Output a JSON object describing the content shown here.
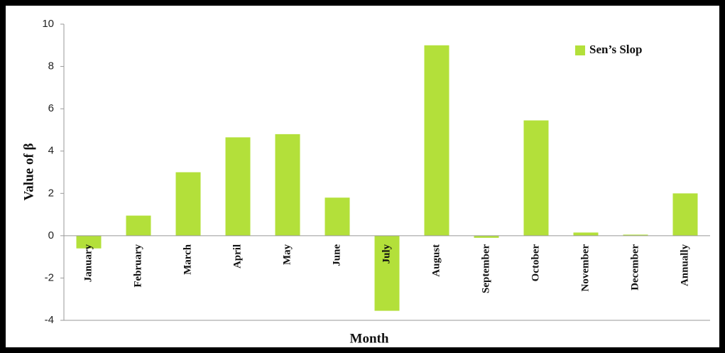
{
  "chart_data": {
    "type": "bar",
    "categories": [
      "January",
      "February",
      "March",
      "April",
      "May",
      "June",
      "July",
      "August",
      "September",
      "October",
      "November",
      "December",
      "Annually"
    ],
    "series": [
      {
        "name": "Sen’s Slop",
        "color": "#b3e03a",
        "values": [
          -0.6,
          0.95,
          3.0,
          4.65,
          4.8,
          1.8,
          -3.55,
          9.0,
          -0.1,
          5.45,
          0.15,
          0.05,
          2.0
        ]
      }
    ],
    "xlabel": "Month",
    "ylabel": "Value of β",
    "ylim": [
      -4,
      10
    ],
    "yticks": [
      -4,
      -2,
      0,
      2,
      4,
      6,
      8,
      10
    ],
    "grid": false,
    "legend": "top-right"
  }
}
